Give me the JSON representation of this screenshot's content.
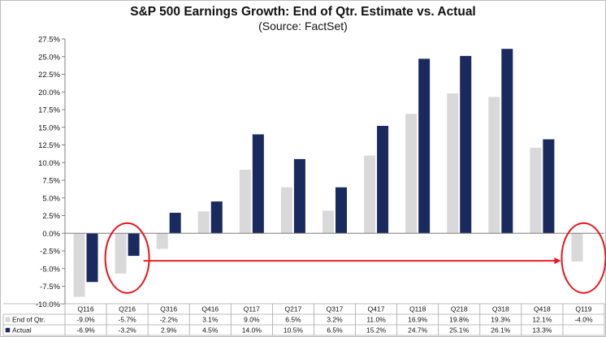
{
  "chart_data": {
    "type": "bar",
    "title": "S&P 500 Earnings Growth: End of Qtr. Estimate vs. Actual",
    "subtitle": "(Source: FactSet)",
    "categories": [
      "Q116",
      "Q216",
      "Q316",
      "Q416",
      "Q117",
      "Q217",
      "Q317",
      "Q417",
      "Q118",
      "Q218",
      "Q318",
      "Q418",
      "Q119"
    ],
    "series": [
      {
        "name": "End of Qtr.",
        "color": "#d9d9d9",
        "values": [
          -9.0,
          -5.7,
          -2.2,
          3.1,
          9.0,
          6.5,
          3.2,
          11.0,
          16.9,
          19.8,
          19.3,
          12.1,
          -4.0
        ],
        "labels": [
          "-9.0%",
          "-5.7%",
          "-2.2%",
          "3.1%",
          "9.0%",
          "6.5%",
          "3.2%",
          "11.0%",
          "16.9%",
          "19.8%",
          "19.3%",
          "12.1%",
          "-4.0%"
        ]
      },
      {
        "name": "Actual",
        "color": "#1b2a5e",
        "values": [
          -6.9,
          -3.2,
          2.9,
          4.5,
          14.0,
          10.5,
          6.5,
          15.2,
          24.7,
          25.1,
          26.1,
          13.3,
          null
        ],
        "labels": [
          "-6.9%",
          "-3.2%",
          "2.9%",
          "4.5%",
          "14.0%",
          "10.5%",
          "6.5%",
          "15.2%",
          "24.7%",
          "25.1%",
          "26.1%",
          "13.3%",
          ""
        ]
      }
    ],
    "ylim": [
      -10,
      27.5
    ],
    "yticks": [
      27.5,
      25,
      22.5,
      20,
      17.5,
      15,
      12.5,
      10,
      7.5,
      5,
      2.5,
      0,
      -2.5,
      -5,
      -7.5,
      -10
    ],
    "ytick_labels": [
      "27.5%",
      "25.0%",
      "22.5%",
      "20.0%",
      "17.5%",
      "15.0%",
      "12.5%",
      "10.0%",
      "7.5%",
      "5.0%",
      "2.5%",
      "0.0%",
      "-2.5%",
      "-5.0%",
      "-7.5%",
      "-10.0%"
    ],
    "grid": false,
    "legend": "data table below chart",
    "annotations": {
      "highlight_categories": [
        "Q216",
        "Q119"
      ],
      "highlight_color": "#e8141b",
      "arrow_from": "Q216",
      "arrow_to": "Q119"
    }
  }
}
